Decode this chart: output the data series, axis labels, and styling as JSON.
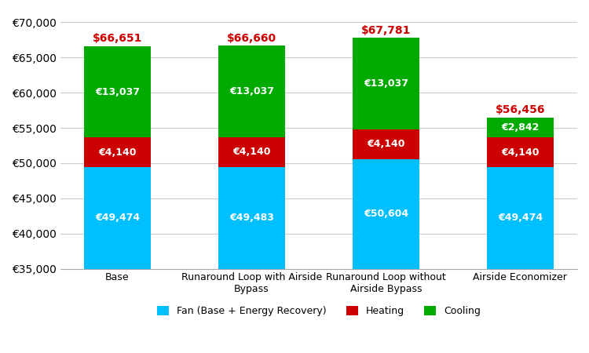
{
  "categories": [
    "Base",
    "Runaround Loop with Airside\nBypass",
    "Runaround Loop without\nAirside Bypass",
    "Airside Economizer"
  ],
  "fan_values": [
    49474,
    49483,
    50604,
    49474
  ],
  "heating_values": [
    4140,
    4140,
    4140,
    4140
  ],
  "cooling_values": [
    13037,
    13037,
    13037,
    2842
  ],
  "fan_labels": [
    "€49,474",
    "€49,483",
    "€50,604",
    "€49,474"
  ],
  "heating_labels": [
    "€4,140",
    "€4,140",
    "€4,140",
    "€4,140"
  ],
  "cooling_labels": [
    "€13,037",
    "€13,037",
    "€13,037",
    "€2,842"
  ],
  "total_labels": [
    "$66,651",
    "$66,660",
    "$67,781",
    "$56,456"
  ],
  "fan_color": "#00BFFF",
  "heating_color": "#CC0000",
  "cooling_color": "#00AA00",
  "total_label_color": "#CC0000",
  "bar_label_color": "#FFFFFF",
  "ymin": 35000,
  "ymax": 70000,
  "yticks": [
    35000,
    40000,
    45000,
    50000,
    55000,
    60000,
    65000,
    70000
  ],
  "legend_labels": [
    "Fan (Base + Energy Recovery)",
    "Heating",
    "Cooling"
  ],
  "grid_color": "#CCCCCC",
  "background_color": "#FFFFFF",
  "bar_width": 0.5
}
